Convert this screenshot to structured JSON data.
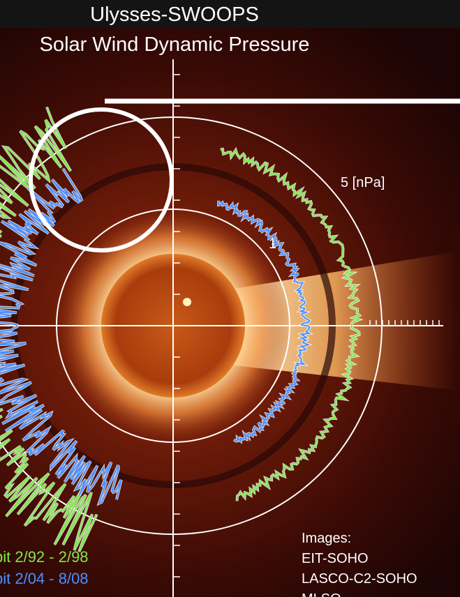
{
  "title": {
    "line1": "Ulysses-SWOOPS",
    "line2": "Solar Wind Dynamic Pressure"
  },
  "scale_labels": {
    "outer": "5 [nPa]",
    "inner": "1"
  },
  "legend": {
    "green": "bit 2/92 - 2/98",
    "blue": "bit 2/04 - 8/08"
  },
  "credits": {
    "heading": "Images:",
    "lines": [
      "EIT-SOHO",
      "LASCO-C2-SOHO",
      "MLSO"
    ]
  }
}
